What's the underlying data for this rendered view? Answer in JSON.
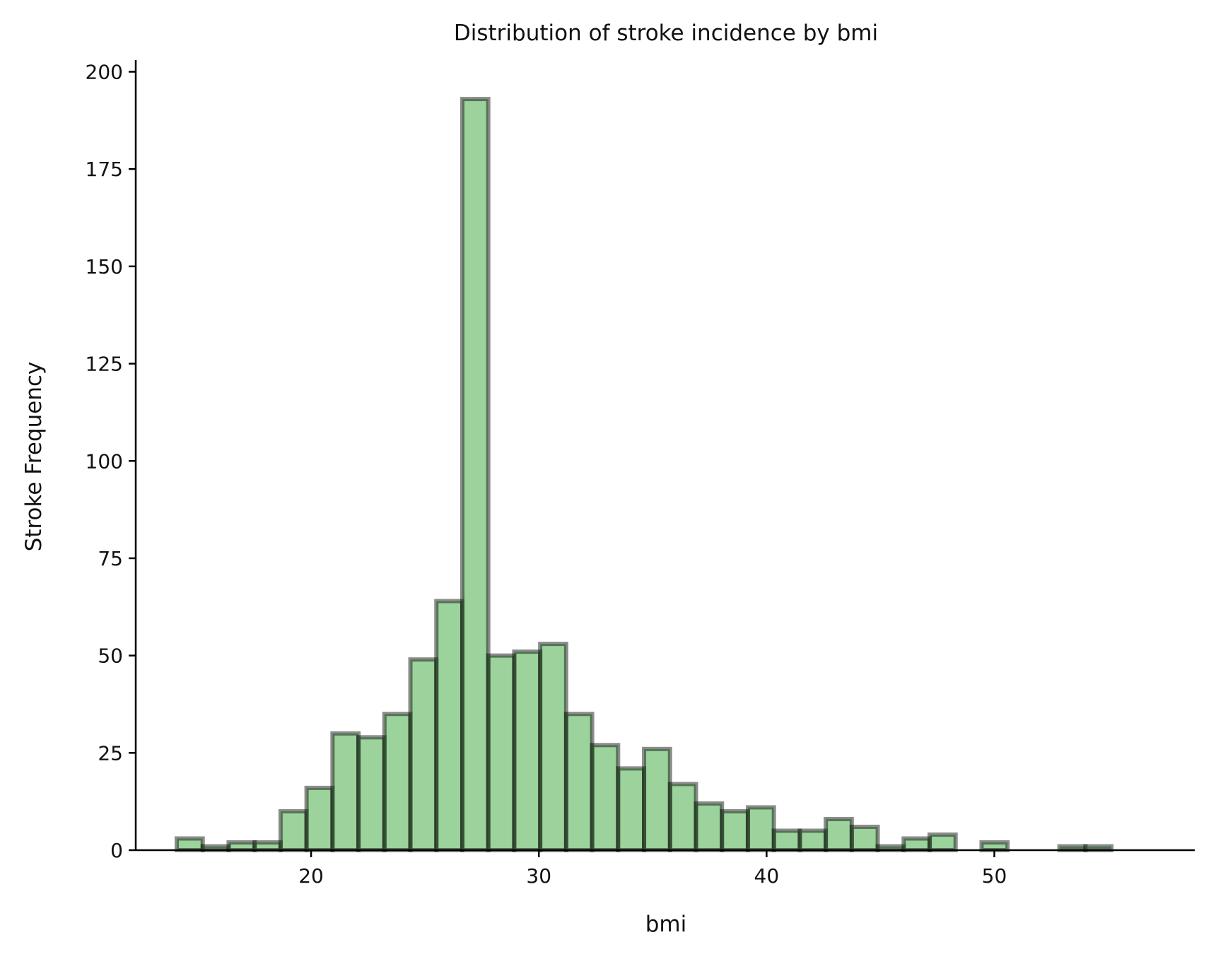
{
  "chart_data": {
    "type": "bar",
    "title": "Distribution of stroke incidence by bmi",
    "xlabel": "bmi",
    "ylabel": "Stroke Frequency",
    "xlim": [
      12.3,
      58.8
    ],
    "ylim": [
      0,
      203
    ],
    "xticks": [
      20,
      30,
      40,
      50
    ],
    "yticks": [
      0,
      25,
      50,
      75,
      100,
      125,
      150,
      175,
      200
    ],
    "bin_width": 1.14,
    "bin_edges_start": [
      14.1,
      15.24,
      16.38,
      17.52,
      18.66,
      19.8,
      20.94,
      22.08,
      23.22,
      24.36,
      25.5,
      26.64,
      27.78,
      28.92,
      30.06,
      31.2,
      32.34,
      33.48,
      34.62,
      35.76,
      36.9,
      38.04,
      39.18,
      40.32,
      41.46,
      42.6,
      43.74,
      44.88,
      46.02,
      47.16,
      48.3,
      49.44,
      50.58,
      51.72,
      52.86,
      54.0,
      55.14
    ],
    "values": [
      3,
      1,
      2,
      2,
      10,
      16,
      30,
      29,
      35,
      49,
      64,
      193,
      50,
      51,
      53,
      35,
      27,
      21,
      26,
      17,
      12,
      10,
      11,
      5,
      5,
      8,
      6,
      1,
      3,
      4,
      0,
      2,
      0,
      0,
      1,
      1,
      0
    ],
    "bar_color": "#2ca02c",
    "bar_opacity": 0.47,
    "edge_color": "#000000",
    "grid": false,
    "legend": "none"
  }
}
